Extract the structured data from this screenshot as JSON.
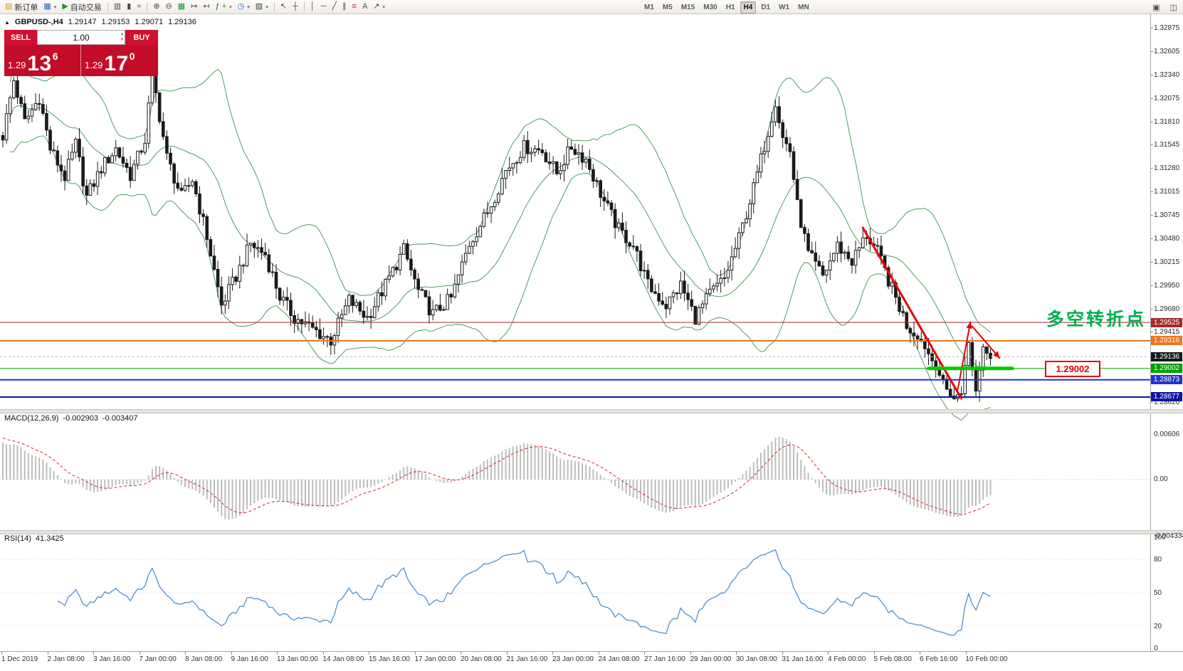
{
  "toolbar": {
    "new_order_label": "新订单",
    "auto_trading_label": "自动交易",
    "timeframes": [
      "M1",
      "M5",
      "M15",
      "M30",
      "H1",
      "H4",
      "D1",
      "W1",
      "MN"
    ],
    "active_timeframe": "H4"
  },
  "icons": {
    "new_order": "▤",
    "chart_window": "▦",
    "auto_trading": "▶",
    "bar_chart": "▥",
    "candle_chart": "▮",
    "line_chart": "≈",
    "zoom_in": "⊕",
    "zoom_out": "⊖",
    "grid": "▦",
    "auto_scroll": "↦",
    "chart_shift": "↤",
    "indicators": "ƒ",
    "periods": "◷",
    "templates": "▨",
    "cursor": "↖",
    "crosshair": "┼",
    "vertical_line": "│",
    "horizontal_line": "─",
    "trendline": "╱",
    "channel": "∥",
    "fibonacci": "≡",
    "text_tool": "A",
    "arrows_tool": "↗",
    "caret": "▾",
    "window_a": "▣",
    "window_b": "◫",
    "collapse": "▲",
    "spin_up": "▴",
    "spin_down": "▾",
    "plus": "+"
  },
  "symbol_bar": {
    "symbol": "GBPUSD-,H4",
    "open": "1.29147",
    "high": "1.29153",
    "low": "1.29071",
    "close": "1.29136"
  },
  "trade_panel": {
    "sell_label": "SELL",
    "buy_label": "BUY",
    "volume": "1.00",
    "sell_price_base": "1.29",
    "sell_price_big": "13",
    "sell_price_sup": "6",
    "buy_price_base": "1.29",
    "buy_price_big": "17",
    "buy_price_sup": "0"
  },
  "annotations": {
    "turning_point": "多空转折点",
    "turning_point_color": "#00b050",
    "price_callout": "1.29002"
  },
  "price_axis_labels": [
    "1.32875",
    "1.32605",
    "1.32340",
    "1.32075",
    "1.31810",
    "1.31545",
    "1.31280",
    "1.31015",
    "1.30745",
    "1.30480",
    "1.30215",
    "1.29950",
    "1.29680",
    "1.29415",
    "1.29150",
    "1.28885",
    "1.28620"
  ],
  "price_tags": [
    {
      "text": "1.29525",
      "price": 1.29525,
      "color": "#a52a2a"
    },
    {
      "text": "1.29316",
      "price": 1.29316,
      "color": "#e87722"
    },
    {
      "text": "1.29136",
      "price": 1.29136,
      "color": "#15191c"
    },
    {
      "text": "1.29002",
      "price": 1.29002,
      "color": "#009e00"
    },
    {
      "text": "1.28873",
      "price": 1.28873,
      "color": "#2233cc"
    },
    {
      "text": "1.28677",
      "price": 1.28677,
      "color": "#0a16a0"
    }
  ],
  "hlines": [
    {
      "price": 1.29525,
      "color": "#a52a2a",
      "style": "solid",
      "width": 1
    },
    {
      "price": 1.29316,
      "color": "#e87722",
      "style": "solid",
      "width": 2
    },
    {
      "price": 1.29136,
      "color": "#b5b5b5",
      "style": "dashed",
      "width": 1
    },
    {
      "price": 1.29002,
      "color": "#00b300",
      "style": "solid",
      "width": 1
    },
    {
      "price": 1.28873,
      "color": "#2233cc",
      "style": "solid",
      "width": 2
    },
    {
      "price": 1.28677,
      "color": "#0a16a0",
      "style": "solid",
      "width": 2
    }
  ],
  "macd_panel": {
    "label": "MACD(12,26,9)",
    "main_value": "-0.002903",
    "signal_value": "-0.003407",
    "axis_labels": [
      "0.00606",
      "0.00",
      "-0.004334"
    ]
  },
  "rsi_panel": {
    "label": "RSI(14)",
    "value": "41.3425",
    "axis_labels": [
      "100",
      "80",
      "50",
      "20",
      "0"
    ],
    "levels": [
      80,
      50,
      20
    ]
  },
  "time_axis": [
    "1 Dec 2019",
    "2 Jan 08:00",
    "3 Jan 16:00",
    "7 Jan 00:00",
    "8 Jan 08:00",
    "9 Jan 16:00",
    "13 Jan 00:00",
    "14 Jan 08:00",
    "15 Jan 16:00",
    "17 Jan 00:00",
    "20 Jan 08:00",
    "21 Jan 16:00",
    "23 Jan 00:00",
    "24 Jan 08:00",
    "27 Jan 16:00",
    "29 Jan 00:00",
    "30 Jan 08:00",
    "31 Jan 16:00",
    "4 Feb 00:00",
    "5 Feb 08:00",
    "6 Feb 16:00",
    "10 Feb 00:00"
  ],
  "chart_data": {
    "type": "candlestick",
    "symbol": "GBPUSD",
    "timeframe": "H4",
    "count": 272,
    "price_top": 1.32875,
    "price_bottom": 1.2862,
    "indicators": [
      "Bollinger Bands(20,2)",
      "MACD(12,26,9)",
      "RSI(14)"
    ],
    "close_anchors": [
      [
        0,
        1.3165
      ],
      [
        3,
        1.3228
      ],
      [
        6,
        1.318
      ],
      [
        10,
        1.3208
      ],
      [
        13,
        1.315
      ],
      [
        17,
        1.3118
      ],
      [
        20,
        1.3155
      ],
      [
        23,
        1.3095
      ],
      [
        27,
        1.3128
      ],
      [
        31,
        1.315
      ],
      [
        35,
        1.312
      ],
      [
        39,
        1.316
      ],
      [
        41,
        1.3235
      ],
      [
        45,
        1.314
      ],
      [
        49,
        1.3095
      ],
      [
        52,
        1.3115
      ],
      [
        56,
        1.305
      ],
      [
        60,
        1.2972
      ],
      [
        64,
        1.3005
      ],
      [
        68,
        1.3042
      ],
      [
        72,
        1.303
      ],
      [
        76,
        1.2982
      ],
      [
        80,
        1.2958
      ],
      [
        85,
        1.2945
      ],
      [
        90,
        1.2932
      ],
      [
        95,
        1.2978
      ],
      [
        100,
        1.2958
      ],
      [
        105,
        1.2995
      ],
      [
        110,
        1.3035
      ],
      [
        114,
        1.2988
      ],
      [
        118,
        1.2962
      ],
      [
        123,
        1.298
      ],
      [
        128,
        1.3042
      ],
      [
        133,
        1.3078
      ],
      [
        138,
        1.3125
      ],
      [
        143,
        1.3152
      ],
      [
        148,
        1.3148
      ],
      [
        152,
        1.3122
      ],
      [
        156,
        1.3152
      ],
      [
        160,
        1.3138
      ],
      [
        165,
        1.309
      ],
      [
        169,
        1.3058
      ],
      [
        173,
        1.304
      ],
      [
        177,
        1.2995
      ],
      [
        182,
        1.2972
      ],
      [
        186,
        1.2995
      ],
      [
        190,
        1.2958
      ],
      [
        194,
        1.2985
      ],
      [
        198,
        1.3002
      ],
      [
        202,
        1.3048
      ],
      [
        206,
        1.3105
      ],
      [
        210,
        1.317
      ],
      [
        212,
        1.3205
      ],
      [
        214,
        1.3162
      ],
      [
        216,
        1.3148
      ],
      [
        218,
        1.3085
      ],
      [
        221,
        1.303
      ],
      [
        225,
        1.3005
      ],
      [
        229,
        1.304
      ],
      [
        233,
        1.3022
      ],
      [
        237,
        1.3052
      ],
      [
        240,
        1.3032
      ],
      [
        244,
        1.299
      ],
      [
        248,
        1.295
      ],
      [
        252,
        1.2932
      ],
      [
        256,
        1.2902
      ],
      [
        259,
        1.2876
      ],
      [
        261,
        1.2866
      ],
      [
        263,
        1.2872
      ],
      [
        264,
        1.2906
      ],
      [
        265,
        1.2928
      ],
      [
        266,
        1.2898
      ],
      [
        267,
        1.2876
      ],
      [
        268,
        1.2898
      ],
      [
        269,
        1.2926
      ],
      [
        270,
        1.2918
      ],
      [
        271,
        1.2914
      ]
    ],
    "drawings": [
      {
        "type": "trendline",
        "from": {
          "i": 236,
          "p": 1.306
        },
        "to": {
          "i": 263,
          "p": 1.2866
        },
        "color": "#e80000",
        "width": 3
      },
      {
        "type": "arrow",
        "from": {
          "i": 262,
          "p": 1.2876
        },
        "to": {
          "i": 265.5,
          "p": 1.2953
        },
        "color": "#e80000",
        "width": 2
      },
      {
        "type": "arrow",
        "from": {
          "i": 266,
          "p": 1.2948
        },
        "to": {
          "i": 273.5,
          "p": 1.2912
        },
        "color": "#e80000",
        "width": 2
      },
      {
        "type": "segment",
        "from": {
          "i": 254,
          "p": 1.29002
        },
        "to": {
          "i": 277,
          "p": 1.29002
        },
        "color": "#00cc00",
        "width": 5
      }
    ]
  }
}
